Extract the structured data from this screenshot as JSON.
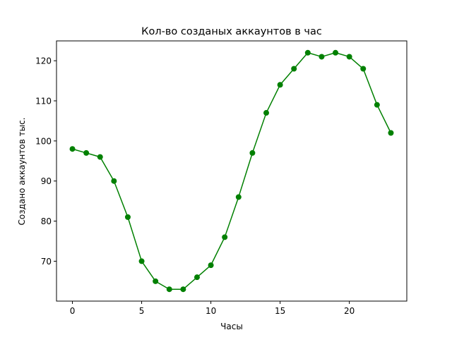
{
  "chart_data": {
    "type": "line",
    "title": "Кол-во созданых аккаунтов в час",
    "xlabel": "Часы",
    "ylabel": "Создано аккаунтов тыс.",
    "x": [
      0,
      1,
      2,
      3,
      4,
      5,
      6,
      7,
      8,
      9,
      10,
      11,
      12,
      13,
      14,
      15,
      16,
      17,
      18,
      19,
      20,
      21,
      22,
      23
    ],
    "series": [
      {
        "values": [
          98,
          97,
          96,
          90,
          81,
          70,
          65,
          63,
          63,
          66,
          69,
          76,
          86,
          97,
          107,
          114,
          118,
          122,
          121,
          122,
          121,
          118,
          109,
          102
        ],
        "color": "#008000",
        "marker": "circle"
      }
    ],
    "xlim": [
      -1.15,
      24.15
    ],
    "ylim": [
      60.05,
      124.95
    ],
    "xticks": [
      0,
      5,
      10,
      15,
      20
    ],
    "yticks": [
      70,
      80,
      90,
      100,
      110,
      120
    ],
    "grid": false,
    "legend": false
  }
}
